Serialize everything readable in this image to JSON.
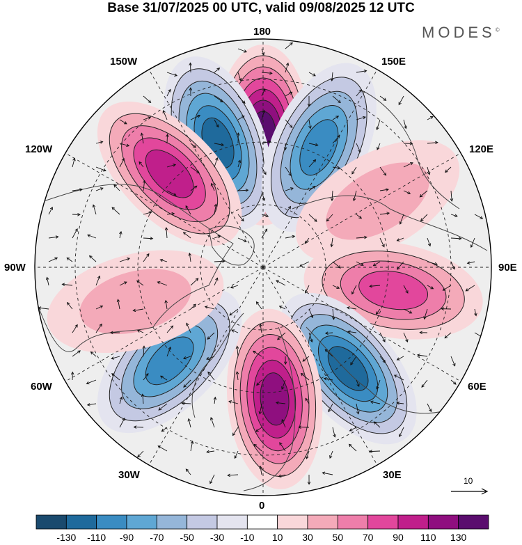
{
  "header": {
    "title": "Base 31/07/2025 00 UTC, valid 09/08/2025 12 UTC",
    "brand": "MODES",
    "brand_mark": "©"
  },
  "map": {
    "projection": "north-polar-stereographic",
    "longitude_labels": {
      "top": "180",
      "top_left": "150W",
      "top_right": "150E",
      "upper_left": "120W",
      "upper_right": "120E",
      "left": "90W",
      "right": "90E",
      "lower_left": "60W",
      "lower_right": "60E",
      "bottom_left": "30W",
      "bottom_right": "30E",
      "bottom": "0"
    },
    "anomalies": [
      {
        "sector": "180",
        "sign": "positive",
        "peak": 130
      },
      {
        "sector": "160W",
        "sign": "negative",
        "peak": -110
      },
      {
        "sector": "135W",
        "sign": "positive",
        "peak": 90
      },
      {
        "sector": "155E",
        "sign": "negative",
        "peak": -90
      },
      {
        "sector": "120E",
        "sign": "positive",
        "peak": 30
      },
      {
        "sector": "80E",
        "sign": "positive",
        "peak": 70
      },
      {
        "sector": "40E",
        "sign": "negative",
        "peak": -110
      },
      {
        "sector": "5E",
        "sign": "positive",
        "peak": 110
      },
      {
        "sector": "45W",
        "sign": "negative",
        "peak": -90
      },
      {
        "sector": "75W",
        "sign": "positive",
        "peak": 30
      }
    ]
  },
  "vector_reference": {
    "label": "10"
  },
  "colorbar": {
    "colors": [
      "#1a4a6e",
      "#1f6a9c",
      "#3a8cc2",
      "#5fa7d4",
      "#95b6d9",
      "#c4c9e3",
      "#e4e4ef",
      "#ffffff",
      "#f9d7da",
      "#f4aab9",
      "#ee7eaa",
      "#e2479c",
      "#c01f8b",
      "#8f0f7f",
      "#5a0d6e"
    ],
    "ticks": [
      "-130",
      "-110",
      "-90",
      "-70",
      "-50",
      "-30",
      "-10",
      "10",
      "30",
      "50",
      "70",
      "90",
      "110",
      "130"
    ]
  }
}
